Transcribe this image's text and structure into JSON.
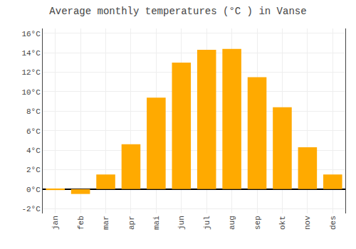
{
  "chart_data": {
    "type": "bar",
    "title": "Average monthly temperatures (°C ) in Vanse",
    "categories": [
      "jan",
      "feb",
      "mar",
      "apr",
      "mai",
      "jun",
      "jul",
      "aug",
      "sep",
      "okt",
      "nov",
      "des"
    ],
    "values": [
      -0.1,
      -0.5,
      1.5,
      4.6,
      9.4,
      13.0,
      14.3,
      14.4,
      11.5,
      8.4,
      4.3,
      1.5
    ],
    "color": "#FFAA00",
    "ylim": [
      -2.5,
      16.5
    ],
    "yticks": [
      {
        "value": -2,
        "label": "-2°C"
      },
      {
        "value": 0,
        "label": "0°C"
      },
      {
        "value": 2,
        "label": "2°C"
      },
      {
        "value": 4,
        "label": "4°C"
      },
      {
        "value": 6,
        "label": "6°C"
      },
      {
        "value": 8,
        "label": "8°C"
      },
      {
        "value": 10,
        "label": "10°C"
      },
      {
        "value": 12,
        "label": "12°C"
      },
      {
        "value": 14,
        "label": "14°C"
      },
      {
        "value": 16,
        "label": "16°C"
      }
    ],
    "grid": true
  }
}
